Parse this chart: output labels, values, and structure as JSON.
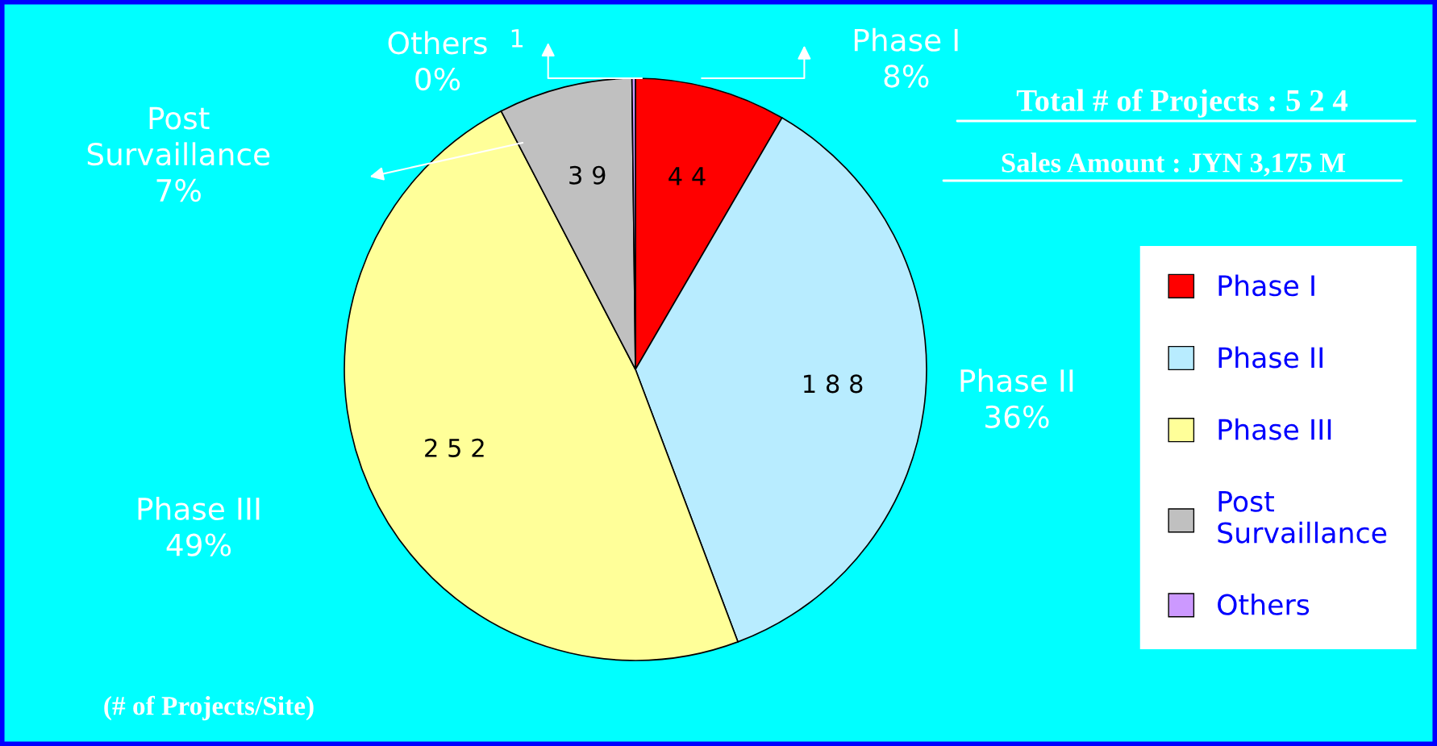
{
  "chart_data": {
    "type": "pie",
    "title": "Total # of Projects : 5 2 4",
    "subtitle": "Sales Amount : JYN 3,175 M",
    "categories": [
      "Phase I",
      "Phase II",
      "Phase III",
      "Post Survaillance",
      "Others"
    ],
    "values": [
      44,
      188,
      252,
      39,
      1
    ],
    "colors": [
      "#ff0000",
      "#b8ecff",
      "#ffff99",
      "#c0c0c0",
      "#cc99ff"
    ],
    "data_labels": true,
    "legend": "right",
    "annotations": [
      "Phase I\n8%",
      "Phase II\n36%",
      "Phase III\n49%",
      "Post\nSurvaillance\n7%",
      "Others\n0%",
      "(# of Projects/Site)"
    ]
  }
}
